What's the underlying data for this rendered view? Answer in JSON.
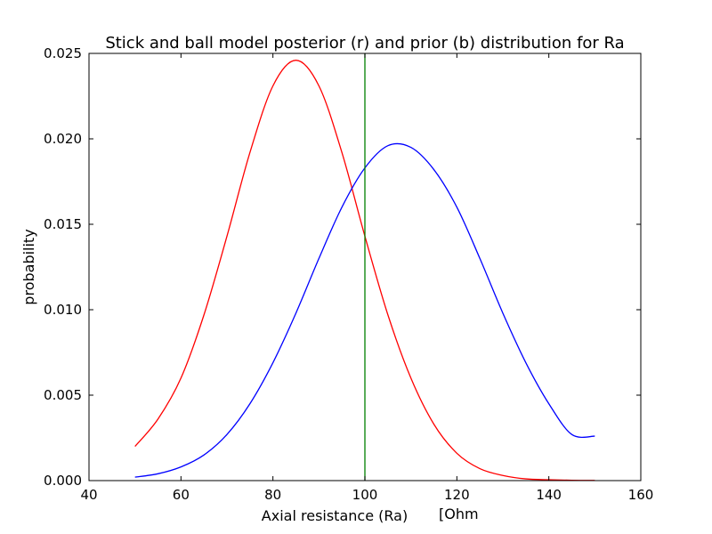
{
  "chart_data": {
    "type": "line",
    "title": "Stick and ball model posterior (r) and prior (b) distribution for Ra",
    "xlabel": "Axial resistance (Ra)",
    "xlabel_unit": "[Ohm",
    "ylabel": "probability",
    "xlim": [
      40,
      160
    ],
    "ylim": [
      0,
      0.025
    ],
    "x_ticks": [
      40,
      60,
      80,
      100,
      120,
      140,
      160
    ],
    "x_tick_labels": [
      "40",
      "60",
      "80",
      "100",
      "120",
      "140",
      "160"
    ],
    "y_ticks": [
      0,
      0.005,
      0.01,
      0.015,
      0.02,
      0.025
    ],
    "y_tick_labels": [
      "0.000",
      "0.005",
      "0.010",
      "0.015",
      "0.020",
      "0.025"
    ],
    "grid": false,
    "series": [
      {
        "color": "#ff0000",
        "x": [
          50,
          55,
          60,
          65,
          70,
          75,
          80,
          85,
          90,
          95,
          100,
          105,
          110,
          115,
          120,
          125,
          130,
          135,
          140,
          145,
          150
        ],
        "y": [
          0.002,
          0.0036,
          0.006,
          0.0097,
          0.0143,
          0.0192,
          0.0231,
          0.0246,
          0.0231,
          0.0192,
          0.0143,
          0.0097,
          0.006,
          0.0033,
          0.0016,
          0.0007,
          0.0003,
          0.0001,
          5e-05,
          2e-05,
          1e-05
        ]
      },
      {
        "color": "#0000ff",
        "x": [
          50,
          55,
          60,
          65,
          70,
          75,
          80,
          85,
          90,
          95,
          100,
          105,
          110,
          115,
          120,
          125,
          130,
          135,
          140,
          145,
          150
        ],
        "y": [
          0.0002,
          0.0004,
          0.0008,
          0.0015,
          0.0027,
          0.0045,
          0.0069,
          0.0098,
          0.013,
          0.016,
          0.0183,
          0.0196,
          0.0195,
          0.0182,
          0.016,
          0.013,
          0.0098,
          0.0069,
          0.0045,
          0.0027,
          0.0026
        ]
      }
    ],
    "vlines": [
      {
        "x": 100,
        "color": "#008000"
      }
    ]
  }
}
